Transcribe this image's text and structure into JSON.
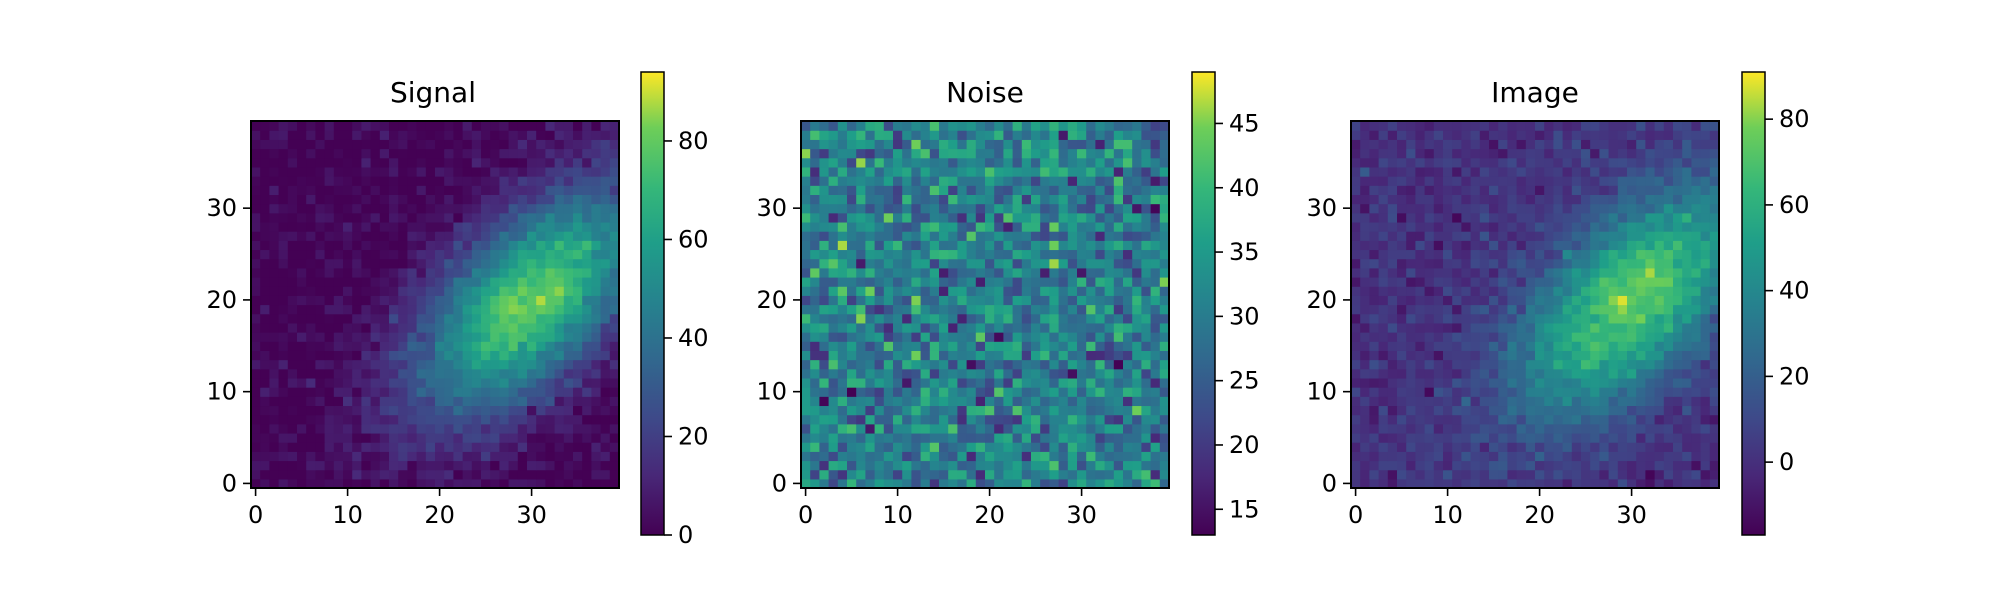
{
  "chart_data": [
    {
      "type": "heatmap",
      "title": "Signal",
      "colormap": "viridis",
      "x_ticks": [
        "0",
        "10",
        "20",
        "30"
      ],
      "y_ticks": [
        "0",
        "10",
        "20",
        "30"
      ],
      "xlim": [
        -0.5,
        39.5
      ],
      "ylim": [
        -0.5,
        39.5
      ],
      "grid_size": [
        40,
        40
      ],
      "colorbar": {
        "ticks": [
          "0",
          "20",
          "40",
          "60",
          "80"
        ],
        "range": [
          0,
          94
        ]
      },
      "field": {
        "kind": "signal",
        "center": [
          30,
          20
        ],
        "peak": 80,
        "noise_sd": 4
      }
    },
    {
      "type": "heatmap",
      "title": "Noise",
      "colormap": "viridis",
      "x_ticks": [
        "0",
        "10",
        "20",
        "30"
      ],
      "y_ticks": [
        "0",
        "10",
        "20",
        "30"
      ],
      "xlim": [
        -0.5,
        39.5
      ],
      "ylim": [
        -0.5,
        39.5
      ],
      "grid_size": [
        40,
        40
      ],
      "colorbar": {
        "ticks": [
          "15",
          "20",
          "25",
          "30",
          "35",
          "40",
          "45"
        ],
        "range": [
          13,
          49
        ]
      },
      "field": {
        "kind": "noise",
        "mean": 30,
        "sd": 5.5
      }
    },
    {
      "type": "heatmap",
      "title": "Image",
      "colormap": "viridis",
      "x_ticks": [
        "0",
        "10",
        "20",
        "30"
      ],
      "y_ticks": [
        "0",
        "10",
        "20",
        "30"
      ],
      "xlim": [
        -0.5,
        39.5
      ],
      "ylim": [
        -0.5,
        39.5
      ],
      "grid_size": [
        40,
        40
      ],
      "colorbar": {
        "ticks": [
          "0",
          "20",
          "40",
          "60",
          "80"
        ],
        "range": [
          -17,
          91
        ]
      },
      "field": {
        "kind": "image",
        "center": [
          30,
          20
        ],
        "peak": 75,
        "offset": 0,
        "noise_sd": 5
      }
    }
  ]
}
